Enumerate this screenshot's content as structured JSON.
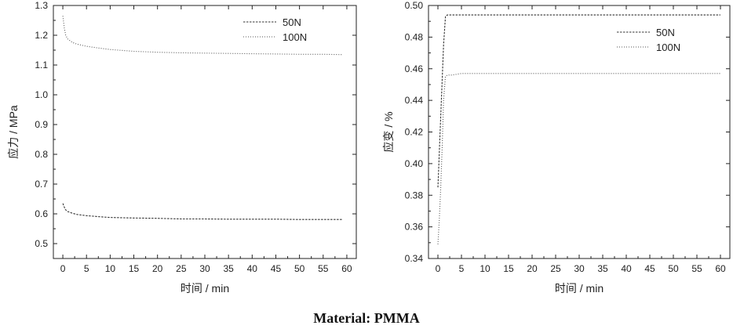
{
  "caption": "Material: PMMA",
  "chart_data": [
    {
      "type": "line",
      "xlabel": "时间 / min",
      "ylabel": "应力 / MPa",
      "xlim": [
        -2,
        62
      ],
      "ylim": [
        0.45,
        1.3
      ],
      "xticks": [
        0,
        5,
        10,
        15,
        20,
        25,
        30,
        35,
        40,
        45,
        50,
        55,
        60
      ],
      "yticks": [
        0.5,
        0.6,
        0.7,
        0.8,
        0.9,
        1.0,
        1.1,
        1.2,
        1.3
      ],
      "xtick_labels": [
        "0",
        "5",
        "10",
        "15",
        "20",
        "25",
        "30",
        "35",
        "40",
        "45",
        "50",
        "55",
        "60"
      ],
      "ytick_labels": [
        "0.5",
        "0.6",
        "0.7",
        "0.8",
        "0.9",
        "1.0",
        "1.1",
        "1.2",
        "1.3"
      ],
      "legend_position": "top-right",
      "grid": false,
      "series": [
        {
          "name": "50N",
          "style": "dashed",
          "x": [
            0,
            0.5,
            1,
            2,
            3,
            5,
            8,
            10,
            15,
            20,
            25,
            30,
            35,
            40,
            45,
            50,
            55,
            59
          ],
          "y": [
            0.635,
            0.615,
            0.608,
            0.602,
            0.598,
            0.594,
            0.59,
            0.588,
            0.586,
            0.585,
            0.583,
            0.583,
            0.582,
            0.582,
            0.582,
            0.581,
            0.581,
            0.581
          ]
        },
        {
          "name": "100N",
          "style": "dotted",
          "x": [
            0,
            0.3,
            0.6,
            1,
            2,
            3,
            5,
            8,
            10,
            15,
            20,
            25,
            30,
            35,
            40,
            45,
            50,
            55,
            59
          ],
          "y": [
            1.265,
            1.225,
            1.2,
            1.188,
            1.176,
            1.17,
            1.163,
            1.156,
            1.152,
            1.146,
            1.143,
            1.141,
            1.14,
            1.139,
            1.138,
            1.137,
            1.136,
            1.136,
            1.135
          ]
        }
      ]
    },
    {
      "type": "line",
      "xlabel": "时间 / min",
      "ylabel": "应变 / %",
      "xlim": [
        -2,
        62
      ],
      "ylim": [
        0.34,
        0.5
      ],
      "xticks": [
        0,
        5,
        10,
        15,
        20,
        25,
        30,
        35,
        40,
        45,
        50,
        55,
        60
      ],
      "yticks": [
        0.34,
        0.36,
        0.38,
        0.4,
        0.42,
        0.44,
        0.46,
        0.48,
        0.5
      ],
      "xtick_labels": [
        "0",
        "5",
        "10",
        "15",
        "20",
        "25",
        "30",
        "35",
        "40",
        "45",
        "50",
        "55",
        "60"
      ],
      "ytick_labels": [
        "0.34",
        "0.36",
        "0.38",
        "0.40",
        "0.42",
        "0.44",
        "0.46",
        "0.48",
        "0.50"
      ],
      "legend_position": "top-right",
      "grid": false,
      "series": [
        {
          "name": "50N",
          "style": "dashed",
          "x": [
            0,
            0.4,
            0.8,
            1.2,
            1.6,
            2,
            5,
            10,
            20,
            30,
            40,
            50,
            60
          ],
          "y": [
            0.385,
            0.415,
            0.445,
            0.475,
            0.493,
            0.494,
            0.494,
            0.494,
            0.494,
            0.494,
            0.494,
            0.494,
            0.494
          ]
        },
        {
          "name": "100N",
          "style": "dotted",
          "x": [
            0,
            0.3,
            0.6,
            0.9,
            1.2,
            1.6,
            2,
            3,
            5,
            10,
            20,
            30,
            40,
            50,
            55,
            60
          ],
          "y": [
            0.349,
            0.365,
            0.385,
            0.41,
            0.44,
            0.455,
            0.456,
            0.456,
            0.457,
            0.457,
            0.457,
            0.457,
            0.457,
            0.457,
            0.457,
            0.457
          ]
        }
      ]
    }
  ]
}
